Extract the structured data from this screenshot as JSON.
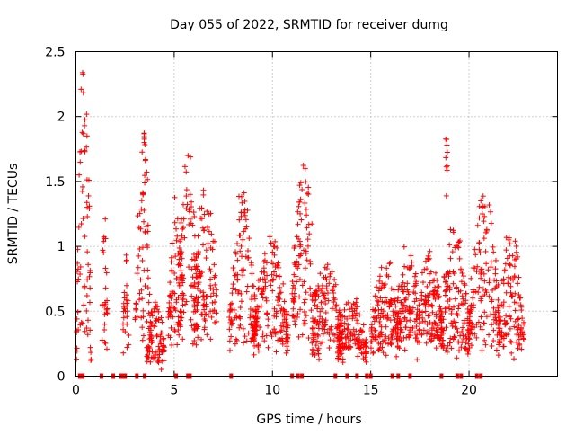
{
  "chart_data": {
    "type": "scatter",
    "title": "Day 055 of 2022, SRMTID for receiver dumg",
    "xlabel": "GPS time / hours",
    "ylabel": "SRMTID / TECUs",
    "xlim": [
      0,
      24.5
    ],
    "ylim": [
      0,
      2.5
    ],
    "xticks": [
      "0",
      "5",
      "10",
      "15",
      "20"
    ],
    "xtick_values": [
      0,
      5,
      10,
      15,
      20
    ],
    "yticks": [
      "0",
      "0.5",
      "1",
      "1.5",
      "2",
      "2.5"
    ],
    "ytick_values": [
      0,
      0.5,
      1,
      1.5,
      2,
      2.5
    ],
    "grid": true,
    "marker": "plus",
    "color": "#ff0000",
    "bursts": [
      {
        "start": 0.0,
        "end": 0.8,
        "base": 0.3,
        "peak": 2.45,
        "spread": 0.35
      },
      {
        "start": 1.3,
        "end": 1.6,
        "base": 0.4,
        "peak": 1.35,
        "spread": 0.3
      },
      {
        "start": 2.4,
        "end": 2.7,
        "base": 0.4,
        "peak": 1.0,
        "spread": 0.25
      },
      {
        "start": 3.0,
        "end": 3.8,
        "base": 0.5,
        "peak": 2.0,
        "spread": 0.35
      },
      {
        "start": 3.6,
        "end": 4.5,
        "base": 0.2,
        "peak": 0.6,
        "spread": 0.15
      },
      {
        "start": 4.7,
        "end": 5.5,
        "base": 0.5,
        "peak": 1.45,
        "spread": 0.3
      },
      {
        "start": 5.2,
        "end": 6.2,
        "base": 0.6,
        "peak": 1.75,
        "spread": 0.3
      },
      {
        "start": 6.0,
        "end": 7.2,
        "base": 0.6,
        "peak": 1.45,
        "spread": 0.3
      },
      {
        "start": 7.8,
        "end": 9.2,
        "base": 0.45,
        "peak": 1.45,
        "spread": 0.25
      },
      {
        "start": 9.0,
        "end": 10.8,
        "base": 0.4,
        "peak": 1.1,
        "spread": 0.25
      },
      {
        "start": 11.0,
        "end": 12.2,
        "base": 0.6,
        "peak": 1.65,
        "spread": 0.3
      },
      {
        "start": 12.0,
        "end": 13.5,
        "base": 0.35,
        "peak": 0.9,
        "spread": 0.2
      },
      {
        "start": 13.3,
        "end": 14.8,
        "base": 0.25,
        "peak": 0.6,
        "spread": 0.15
      },
      {
        "start": 15.0,
        "end": 16.5,
        "base": 0.4,
        "peak": 0.9,
        "spread": 0.2
      },
      {
        "start": 16.3,
        "end": 17.5,
        "base": 0.45,
        "peak": 1.0,
        "spread": 0.2
      },
      {
        "start": 17.3,
        "end": 18.7,
        "base": 0.35,
        "peak": 1.05,
        "spread": 0.2
      },
      {
        "start": 18.5,
        "end": 20.0,
        "base": 0.35,
        "peak": 1.15,
        "spread": 0.2
      },
      {
        "start": 18.8,
        "end": 18.9,
        "base": 1.93,
        "peak": 1.93,
        "spread": 0.01
      },
      {
        "start": 20.0,
        "end": 21.6,
        "base": 0.45,
        "peak": 1.4,
        "spread": 0.25
      },
      {
        "start": 21.5,
        "end": 22.8,
        "base": 0.35,
        "peak": 1.15,
        "spread": 0.2
      }
    ],
    "zero_markers": [
      0.2,
      0.35,
      1.3,
      1.9,
      2.3,
      2.45,
      2.5,
      3.1,
      3.5,
      5.1,
      5.7,
      5.8,
      7.9,
      11.0,
      11.3,
      11.5,
      13.2,
      13.8,
      14.3,
      14.8,
      15.0,
      16.1,
      16.4,
      17.0,
      18.6,
      19.4,
      19.6,
      20.4,
      20.6
    ]
  }
}
